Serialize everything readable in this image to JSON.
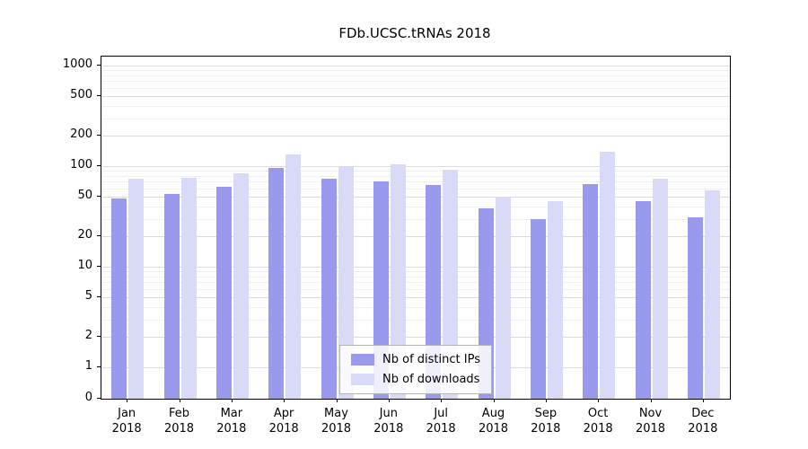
{
  "chart_data": {
    "type": "bar",
    "title": "FDb.UCSC.tRNAs 2018",
    "categories": [
      "Jan",
      "Feb",
      "Mar",
      "Apr",
      "May",
      "Jun",
      "Jul",
      "Aug",
      "Sep",
      "Oct",
      "Nov",
      "Dec"
    ],
    "year_label": "2018",
    "series": [
      {
        "id": "distinct-ips",
        "name": "Nb of distinct IPs",
        "color": "#9999ee",
        "values": [
          48,
          53,
          62,
          95,
          75,
          70,
          65,
          38,
          30,
          66,
          45,
          31
        ]
      },
      {
        "id": "downloads",
        "name": "Nb of downloads",
        "color": "#d9d9f8",
        "values": [
          75,
          76,
          85,
          130,
          100,
          105,
          93,
          50,
          45,
          140,
          75,
          57
        ]
      }
    ],
    "yticks": [
      0,
      1,
      2,
      5,
      10,
      20,
      50,
      100,
      200,
      500,
      1000
    ],
    "yscale": "symlog",
    "ylim": [
      0,
      1000
    ],
    "grid": true,
    "legend_position": "lower center"
  }
}
